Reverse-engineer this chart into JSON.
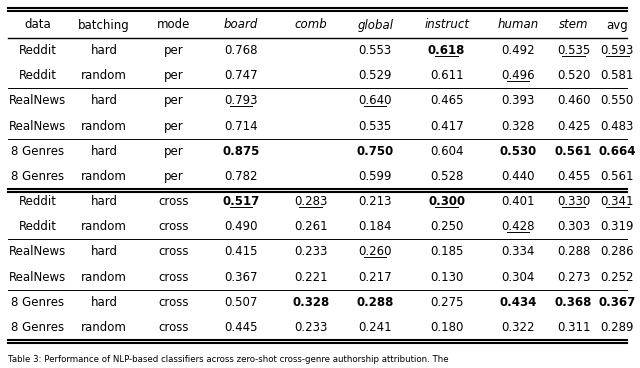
{
  "columns": [
    "data",
    "batching",
    "mode",
    "board",
    "comb",
    "global",
    "instruct",
    "human",
    "stem",
    "avg"
  ],
  "col_italic": [
    false,
    false,
    false,
    true,
    true,
    true,
    true,
    true,
    true,
    false
  ],
  "rows": [
    [
      "Reddit",
      "hard",
      "per",
      "0.768",
      "",
      "0.553",
      "0.618",
      "0.492",
      "0.535",
      "0.593"
    ],
    [
      "Reddit",
      "random",
      "per",
      "0.747",
      "",
      "0.529",
      "0.611",
      "0.496",
      "0.520",
      "0.581"
    ],
    [
      "RealNews",
      "hard",
      "per",
      "0.793",
      "",
      "0.640",
      "0.465",
      "0.393",
      "0.460",
      "0.550"
    ],
    [
      "RealNews",
      "random",
      "per",
      "0.714",
      "",
      "0.535",
      "0.417",
      "0.328",
      "0.425",
      "0.483"
    ],
    [
      "8 Genres",
      "hard",
      "per",
      "0.875",
      "",
      "0.750",
      "0.604",
      "0.530",
      "0.561",
      "0.664"
    ],
    [
      "8 Genres",
      "random",
      "per",
      "0.782",
      "",
      "0.599",
      "0.528",
      "0.440",
      "0.455",
      "0.561"
    ],
    [
      "Reddit",
      "hard",
      "cross",
      "0.517",
      "0.283",
      "0.213",
      "0.300",
      "0.401",
      "0.330",
      "0.341"
    ],
    [
      "Reddit",
      "random",
      "cross",
      "0.490",
      "0.261",
      "0.184",
      "0.250",
      "0.428",
      "0.303",
      "0.319"
    ],
    [
      "RealNews",
      "hard",
      "cross",
      "0.415",
      "0.233",
      "0.260",
      "0.185",
      "0.334",
      "0.288",
      "0.286"
    ],
    [
      "RealNews",
      "random",
      "cross",
      "0.367",
      "0.221",
      "0.217",
      "0.130",
      "0.304",
      "0.273",
      "0.252"
    ],
    [
      "8 Genres",
      "hard",
      "cross",
      "0.507",
      "0.328",
      "0.288",
      "0.275",
      "0.434",
      "0.368",
      "0.367"
    ],
    [
      "8 Genres",
      "random",
      "cross",
      "0.445",
      "0.233",
      "0.241",
      "0.180",
      "0.322",
      "0.311",
      "0.289"
    ]
  ],
  "bold": [
    [
      false,
      false,
      false,
      false,
      false,
      false,
      true,
      false,
      false,
      false
    ],
    [
      false,
      false,
      false,
      false,
      false,
      false,
      false,
      false,
      false,
      false
    ],
    [
      false,
      false,
      false,
      false,
      false,
      false,
      false,
      false,
      false,
      false
    ],
    [
      false,
      false,
      false,
      false,
      false,
      false,
      false,
      false,
      false,
      false
    ],
    [
      false,
      false,
      false,
      true,
      false,
      true,
      false,
      true,
      true,
      true
    ],
    [
      false,
      false,
      false,
      false,
      false,
      false,
      false,
      false,
      false,
      false
    ],
    [
      false,
      false,
      false,
      true,
      false,
      false,
      true,
      false,
      false,
      false
    ],
    [
      false,
      false,
      false,
      false,
      false,
      false,
      false,
      false,
      false,
      false
    ],
    [
      false,
      false,
      false,
      false,
      false,
      false,
      false,
      false,
      false,
      false
    ],
    [
      false,
      false,
      false,
      false,
      false,
      false,
      false,
      false,
      false,
      false
    ],
    [
      false,
      false,
      false,
      false,
      true,
      true,
      false,
      true,
      true,
      true
    ],
    [
      false,
      false,
      false,
      false,
      false,
      false,
      false,
      false,
      false,
      false
    ]
  ],
  "underline": [
    [
      false,
      false,
      false,
      false,
      false,
      false,
      true,
      false,
      true,
      true
    ],
    [
      false,
      false,
      false,
      false,
      false,
      false,
      false,
      true,
      false,
      false
    ],
    [
      false,
      false,
      false,
      true,
      false,
      true,
      false,
      false,
      false,
      false
    ],
    [
      false,
      false,
      false,
      false,
      false,
      false,
      false,
      false,
      false,
      false
    ],
    [
      false,
      false,
      false,
      false,
      false,
      false,
      false,
      false,
      false,
      false
    ],
    [
      false,
      false,
      false,
      false,
      false,
      false,
      false,
      false,
      false,
      false
    ],
    [
      false,
      false,
      false,
      true,
      true,
      false,
      true,
      false,
      true,
      true
    ],
    [
      false,
      false,
      false,
      false,
      false,
      false,
      false,
      true,
      false,
      false
    ],
    [
      false,
      false,
      false,
      false,
      false,
      true,
      false,
      false,
      false,
      false
    ],
    [
      false,
      false,
      false,
      false,
      false,
      false,
      false,
      false,
      false,
      false
    ],
    [
      false,
      false,
      false,
      false,
      false,
      false,
      false,
      false,
      false,
      false
    ],
    [
      false,
      false,
      false,
      false,
      false,
      false,
      false,
      false,
      false,
      false
    ]
  ],
  "group_separators": [
    2,
    4,
    6,
    8,
    10
  ],
  "thick_separator": 6,
  "caption": "Table 3: Performance of NLP-based classifiers across zero-shot cross-genre authorship attribution. The"
}
